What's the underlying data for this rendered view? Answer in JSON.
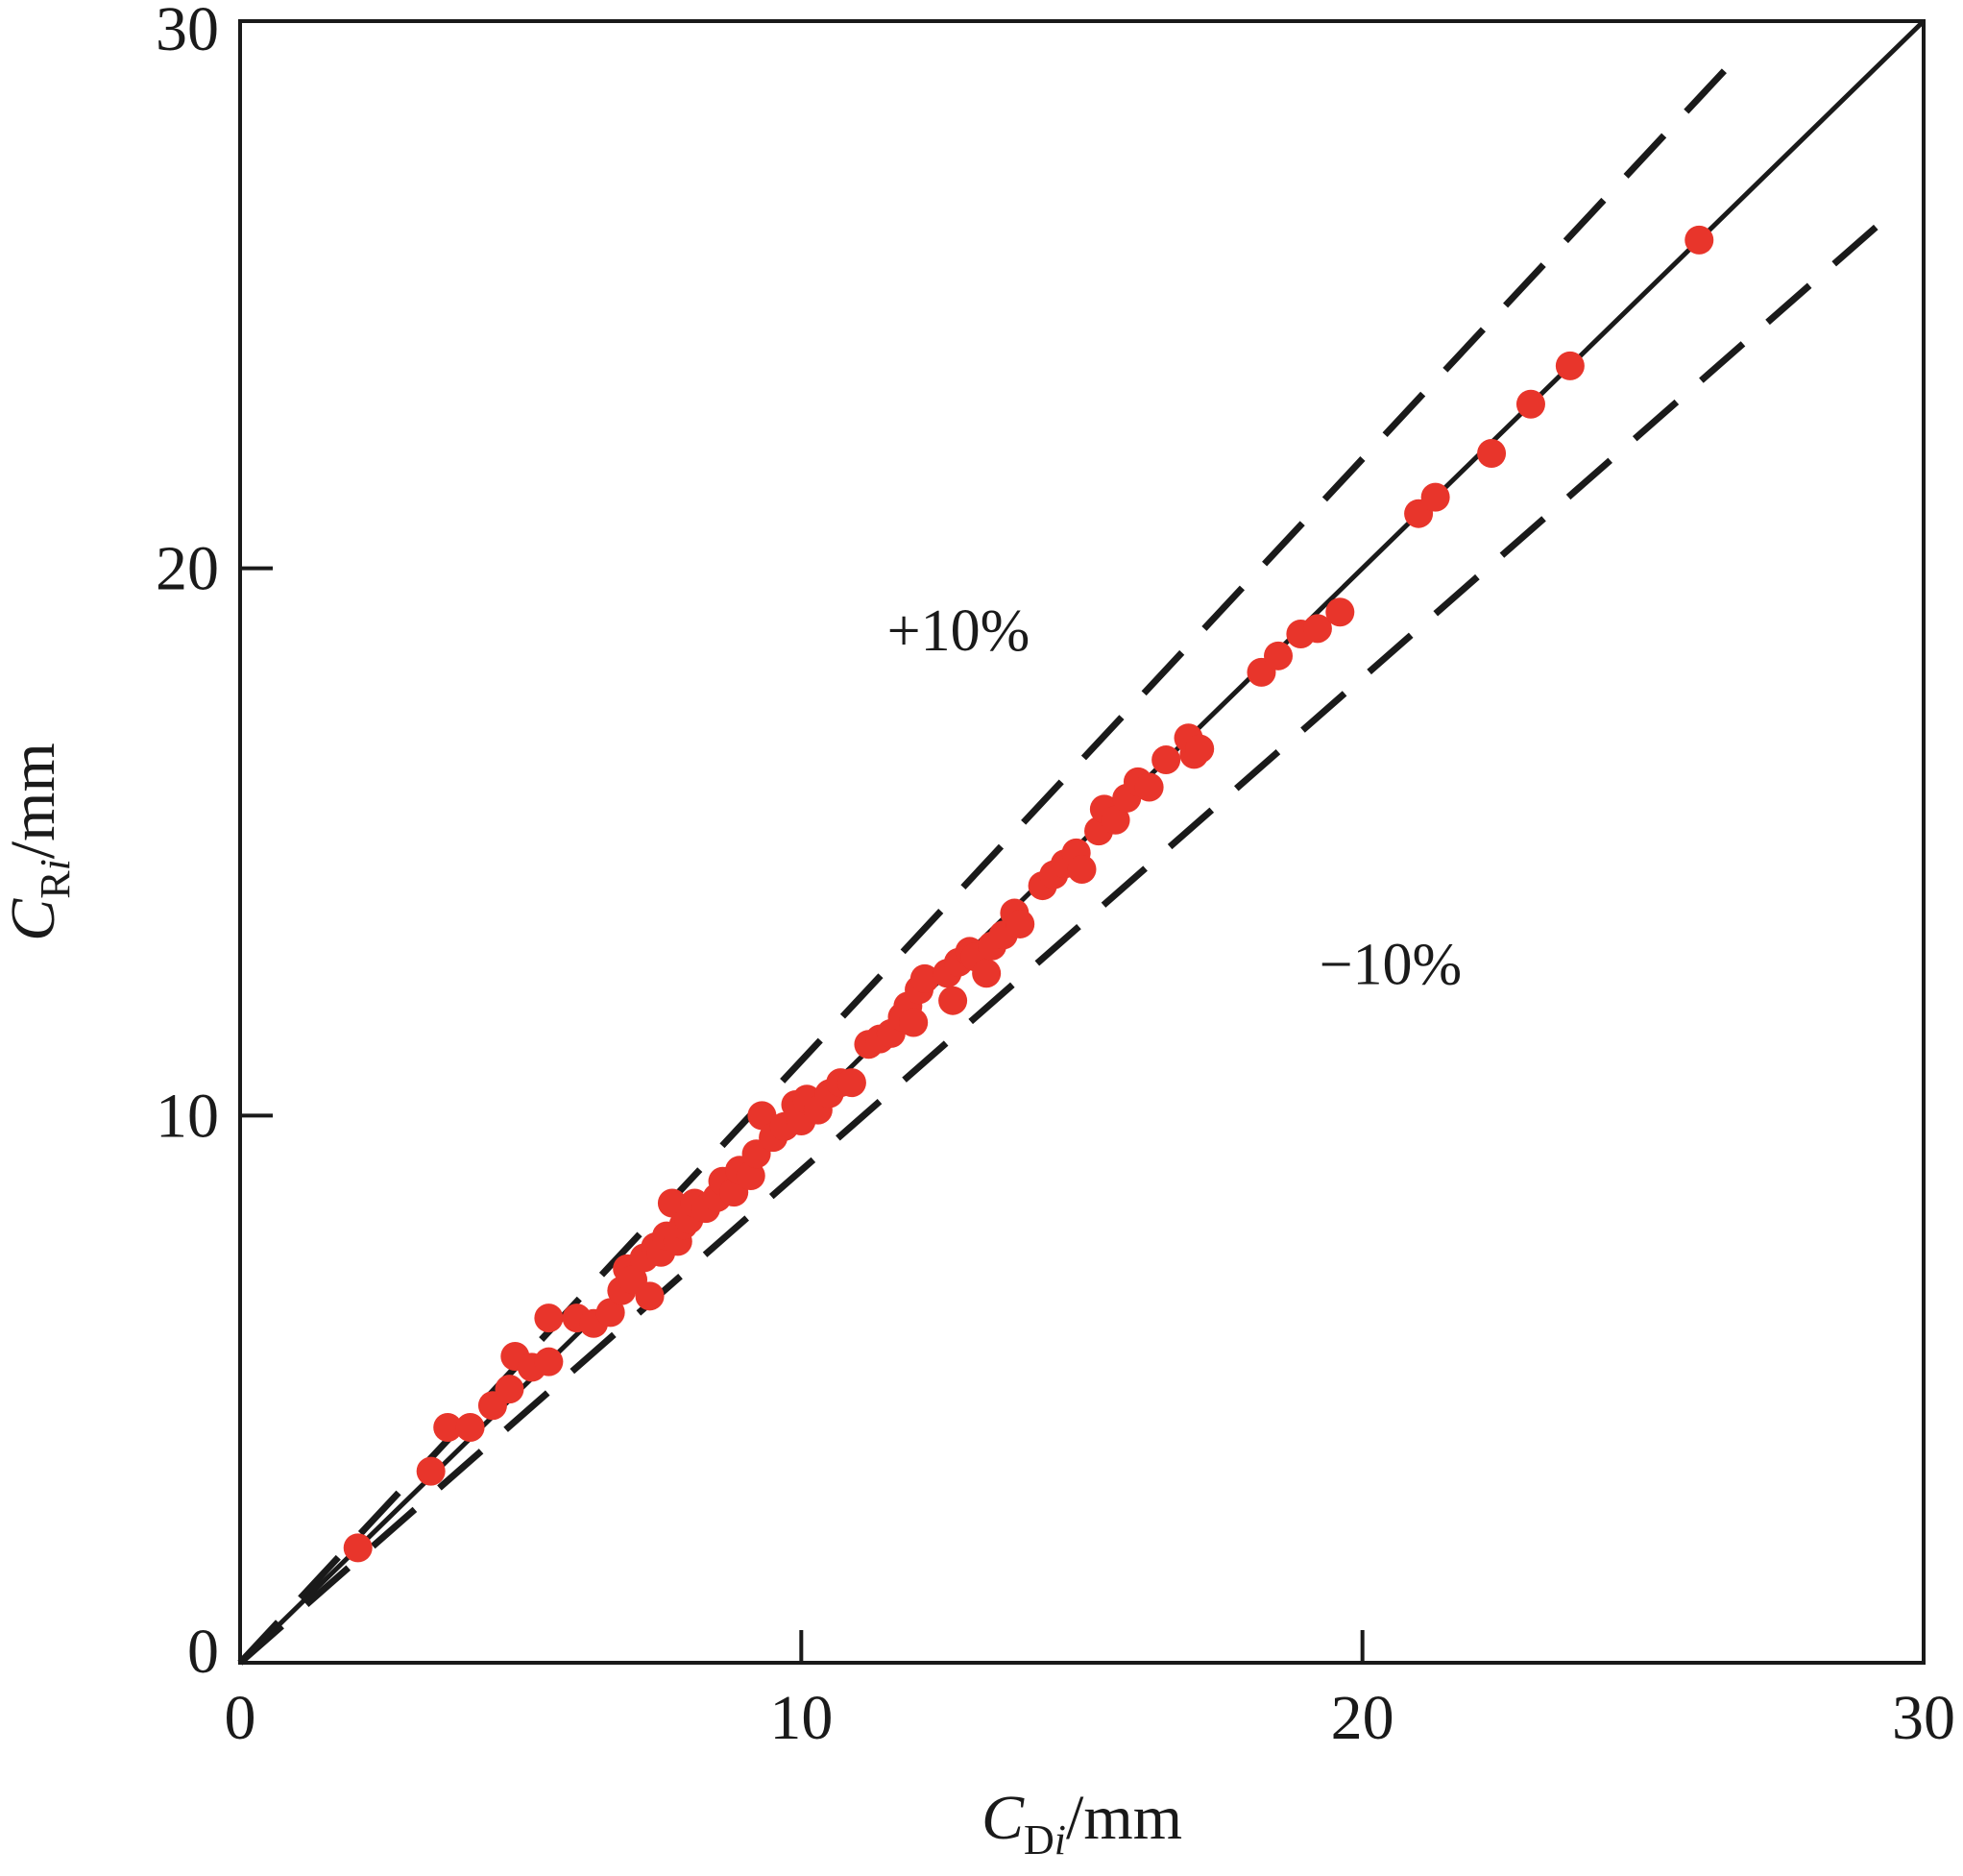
{
  "chart_data": {
    "type": "scatter",
    "title": "",
    "xlabel": {
      "main": "C",
      "sub_upright": "D",
      "sub_italic": "i",
      "unit": "/mm"
    },
    "ylabel": {
      "main": "C",
      "sub_upright": "R",
      "sub_italic": "i",
      "unit": "/mm"
    },
    "xlim": [
      0,
      30
    ],
    "ylim": [
      0,
      30
    ],
    "x_ticks": [
      0,
      10,
      20,
      30
    ],
    "y_ticks": [
      0,
      10,
      20,
      30
    ],
    "x_tick_labels": [
      "0",
      "10",
      "20",
      "30"
    ],
    "y_tick_labels": [
      "0",
      "10",
      "20",
      "30"
    ],
    "grid": false,
    "legend": "none",
    "reference_lines": [
      {
        "id": "identity",
        "slope": 1.0,
        "style": "solid",
        "x_end": 30
      },
      {
        "id": "upper-10",
        "slope": 1.1,
        "style": "dashed",
        "x_end": 26.6
      },
      {
        "id": "lower-10",
        "slope": 0.9,
        "style": "dashed",
        "x_end": 29.4
      }
    ],
    "annotations": [
      {
        "text": "+10%",
        "x": 12.8,
        "y": 18.5
      },
      {
        "text": "−10%",
        "x": 20.5,
        "y": 12.4
      }
    ],
    "colors": {
      "points": "#e8352b",
      "lines": "#1a1a1a"
    },
    "series": [
      {
        "points": [
          [
            2.1,
            2.1
          ],
          [
            3.4,
            3.5
          ],
          [
            3.7,
            4.3
          ],
          [
            4.1,
            4.3
          ],
          [
            4.5,
            4.7
          ],
          [
            4.8,
            5.0
          ],
          [
            4.9,
            5.6
          ],
          [
            5.2,
            5.4
          ],
          [
            5.5,
            5.5
          ],
          [
            5.5,
            6.3
          ],
          [
            6.0,
            6.3
          ],
          [
            6.3,
            6.2
          ],
          [
            6.6,
            6.4
          ],
          [
            6.8,
            6.8
          ],
          [
            6.9,
            7.2
          ],
          [
            7.0,
            7.0
          ],
          [
            7.2,
            7.4
          ],
          [
            7.3,
            6.7
          ],
          [
            7.4,
            7.6
          ],
          [
            7.5,
            7.5
          ],
          [
            7.6,
            7.8
          ],
          [
            7.7,
            8.4
          ],
          [
            7.8,
            7.7
          ],
          [
            7.9,
            8.0
          ],
          [
            8.0,
            8.1
          ],
          [
            8.1,
            8.4
          ],
          [
            8.3,
            8.3
          ],
          [
            8.5,
            8.5
          ],
          [
            8.6,
            8.8
          ],
          [
            8.8,
            8.6
          ],
          [
            8.9,
            9.0
          ],
          [
            9.1,
            8.9
          ],
          [
            9.2,
            9.3
          ],
          [
            9.3,
            10.0
          ],
          [
            9.5,
            9.6
          ],
          [
            9.7,
            9.8
          ],
          [
            9.9,
            10.2
          ],
          [
            10.0,
            9.9
          ],
          [
            10.1,
            10.3
          ],
          [
            10.3,
            10.1
          ],
          [
            10.5,
            10.4
          ],
          [
            10.7,
            10.6
          ],
          [
            10.9,
            10.6
          ],
          [
            11.2,
            11.3
          ],
          [
            11.4,
            11.4
          ],
          [
            11.6,
            11.5
          ],
          [
            11.8,
            11.8
          ],
          [
            11.9,
            12.0
          ],
          [
            12.0,
            11.7
          ],
          [
            12.1,
            12.3
          ],
          [
            12.2,
            12.5
          ],
          [
            12.6,
            12.6
          ],
          [
            12.7,
            12.1
          ],
          [
            12.8,
            12.8
          ],
          [
            13.0,
            13.0
          ],
          [
            13.1,
            12.9
          ],
          [
            13.3,
            12.6
          ],
          [
            13.4,
            13.1
          ],
          [
            13.6,
            13.3
          ],
          [
            13.8,
            13.7
          ],
          [
            13.9,
            13.5
          ],
          [
            14.3,
            14.2
          ],
          [
            14.5,
            14.4
          ],
          [
            14.7,
            14.6
          ],
          [
            14.9,
            14.8
          ],
          [
            15.0,
            14.5
          ],
          [
            15.3,
            15.2
          ],
          [
            15.4,
            15.6
          ],
          [
            15.6,
            15.4
          ],
          [
            15.8,
            15.8
          ],
          [
            16.0,
            16.1
          ],
          [
            16.2,
            16.0
          ],
          [
            16.5,
            16.5
          ],
          [
            16.9,
            16.9
          ],
          [
            17.0,
            16.6
          ],
          [
            17.1,
            16.7
          ],
          [
            18.2,
            18.1
          ],
          [
            18.5,
            18.4
          ],
          [
            18.9,
            18.8
          ],
          [
            19.2,
            18.9
          ],
          [
            19.6,
            19.2
          ],
          [
            21.0,
            21.0
          ],
          [
            21.3,
            21.3
          ],
          [
            22.3,
            22.1
          ],
          [
            23.0,
            23.0
          ],
          [
            23.7,
            23.7
          ],
          [
            26.0,
            26.0
          ]
        ]
      }
    ]
  }
}
